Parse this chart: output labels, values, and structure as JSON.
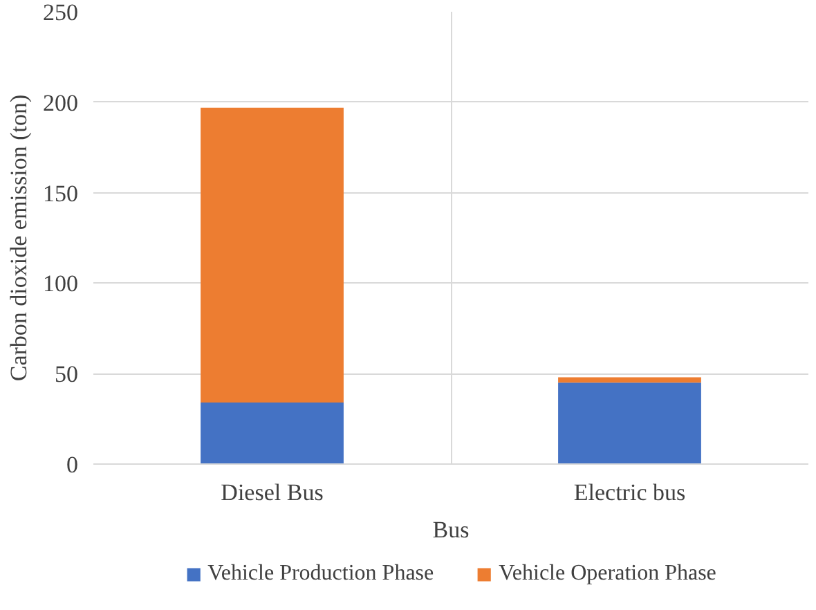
{
  "chart_data": {
    "type": "bar",
    "stacked": true,
    "xlabel": "Bus",
    "ylabel": "Carbon dioxide emission (ton)",
    "categories": [
      "Diesel Bus",
      "Electric bus"
    ],
    "series": [
      {
        "name": "Vehicle Production Phase",
        "color": "#4472c4",
        "values": [
          34,
          45
        ]
      },
      {
        "name": "Vehicle Operation Phase",
        "color": "#ed7d31",
        "values": [
          163,
          3
        ]
      }
    ],
    "ylim": [
      0,
      250
    ],
    "yticks": [
      0,
      50,
      100,
      150,
      200,
      250
    ],
    "grid": true,
    "legend": "bottom"
  }
}
